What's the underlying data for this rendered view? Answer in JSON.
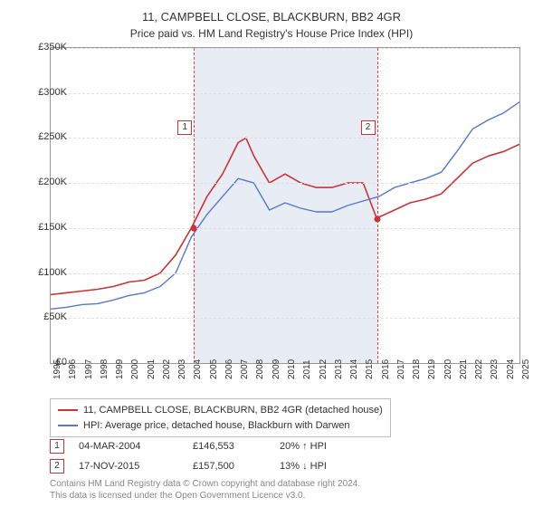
{
  "title": "11, CAMPBELL CLOSE, BLACKBURN, BB2 4GR",
  "subtitle": "Price paid vs. HM Land Registry's House Price Index (HPI)",
  "chart": {
    "background_color": "#ffffff",
    "border_color": "#999999",
    "grid_color": "#e0e0e0",
    "shade_color": "#e8edf5",
    "x": {
      "start_year": 1995,
      "end_year": 2025,
      "tick_step": 1
    },
    "y": {
      "min": 0,
      "max": 350000,
      "tick_step": 50000,
      "prefix": "£",
      "labels": [
        "£0",
        "£50K",
        "£100K",
        "£150K",
        "£200K",
        "£250K",
        "£300K",
        "£350K"
      ]
    },
    "shade": {
      "from": 2004.17,
      "to": 2015.88
    },
    "markers": [
      {
        "id": "1",
        "year": 2004.17,
        "box_top": 80
      },
      {
        "id": "2",
        "year": 2015.88,
        "box_top": 80
      }
    ],
    "series": [
      {
        "name": "price_paid",
        "color": "#cc3333",
        "width": 1.6,
        "points": [
          [
            1995,
            76000
          ],
          [
            1996,
            78000
          ],
          [
            1997,
            80000
          ],
          [
            1998,
            82000
          ],
          [
            1999,
            85000
          ],
          [
            2000,
            90000
          ],
          [
            2001,
            92000
          ],
          [
            2002,
            100000
          ],
          [
            2003,
            120000
          ],
          [
            2004,
            150000
          ],
          [
            2005,
            185000
          ],
          [
            2006,
            210000
          ],
          [
            2007,
            245000
          ],
          [
            2007.5,
            250000
          ],
          [
            2008,
            230000
          ],
          [
            2009,
            200000
          ],
          [
            2010,
            210000
          ],
          [
            2011,
            200000
          ],
          [
            2012,
            195000
          ],
          [
            2013,
            195000
          ],
          [
            2014,
            200000
          ],
          [
            2015,
            200000
          ],
          [
            2015.88,
            160000
          ],
          [
            2016,
            162000
          ],
          [
            2017,
            170000
          ],
          [
            2018,
            178000
          ],
          [
            2019,
            182000
          ],
          [
            2020,
            188000
          ],
          [
            2021,
            205000
          ],
          [
            2022,
            222000
          ],
          [
            2023,
            230000
          ],
          [
            2024,
            235000
          ],
          [
            2025,
            243000
          ]
        ]
      },
      {
        "name": "hpi",
        "color": "#5577cc",
        "width": 1.4,
        "points": [
          [
            1995,
            60000
          ],
          [
            1996,
            62000
          ],
          [
            1997,
            65000
          ],
          [
            1998,
            66000
          ],
          [
            1999,
            70000
          ],
          [
            2000,
            75000
          ],
          [
            2001,
            78000
          ],
          [
            2002,
            85000
          ],
          [
            2003,
            100000
          ],
          [
            2004,
            140000
          ],
          [
            2005,
            165000
          ],
          [
            2006,
            185000
          ],
          [
            2007,
            205000
          ],
          [
            2008,
            200000
          ],
          [
            2009,
            170000
          ],
          [
            2010,
            178000
          ],
          [
            2011,
            172000
          ],
          [
            2012,
            168000
          ],
          [
            2013,
            168000
          ],
          [
            2014,
            175000
          ],
          [
            2015,
            180000
          ],
          [
            2016,
            185000
          ],
          [
            2017,
            195000
          ],
          [
            2018,
            200000
          ],
          [
            2019,
            205000
          ],
          [
            2020,
            212000
          ],
          [
            2021,
            235000
          ],
          [
            2022,
            260000
          ],
          [
            2023,
            270000
          ],
          [
            2024,
            278000
          ],
          [
            2025,
            290000
          ]
        ]
      }
    ],
    "price_dots": [
      {
        "year": 2004.17,
        "value": 150000,
        "color": "#cc3333"
      },
      {
        "year": 2015.88,
        "value": 160000,
        "color": "#cc3333"
      }
    ]
  },
  "legend": {
    "items": [
      {
        "color": "#cc3333",
        "label": "11, CAMPBELL CLOSE, BLACKBURN, BB2 4GR (detached house)"
      },
      {
        "color": "#5577cc",
        "label": "HPI: Average price, detached house, Blackburn with Darwen"
      }
    ]
  },
  "sales": [
    {
      "id": "1",
      "date": "04-MAR-2004",
      "price": "£146,553",
      "delta": "20% ↑ HPI"
    },
    {
      "id": "2",
      "date": "17-NOV-2015",
      "price": "£157,500",
      "delta": "13% ↓ HPI"
    }
  ],
  "credits": {
    "line1": "Contains HM Land Registry data © Crown copyright and database right 2024.",
    "line2": "This data is licensed under the Open Government Licence v3.0."
  }
}
